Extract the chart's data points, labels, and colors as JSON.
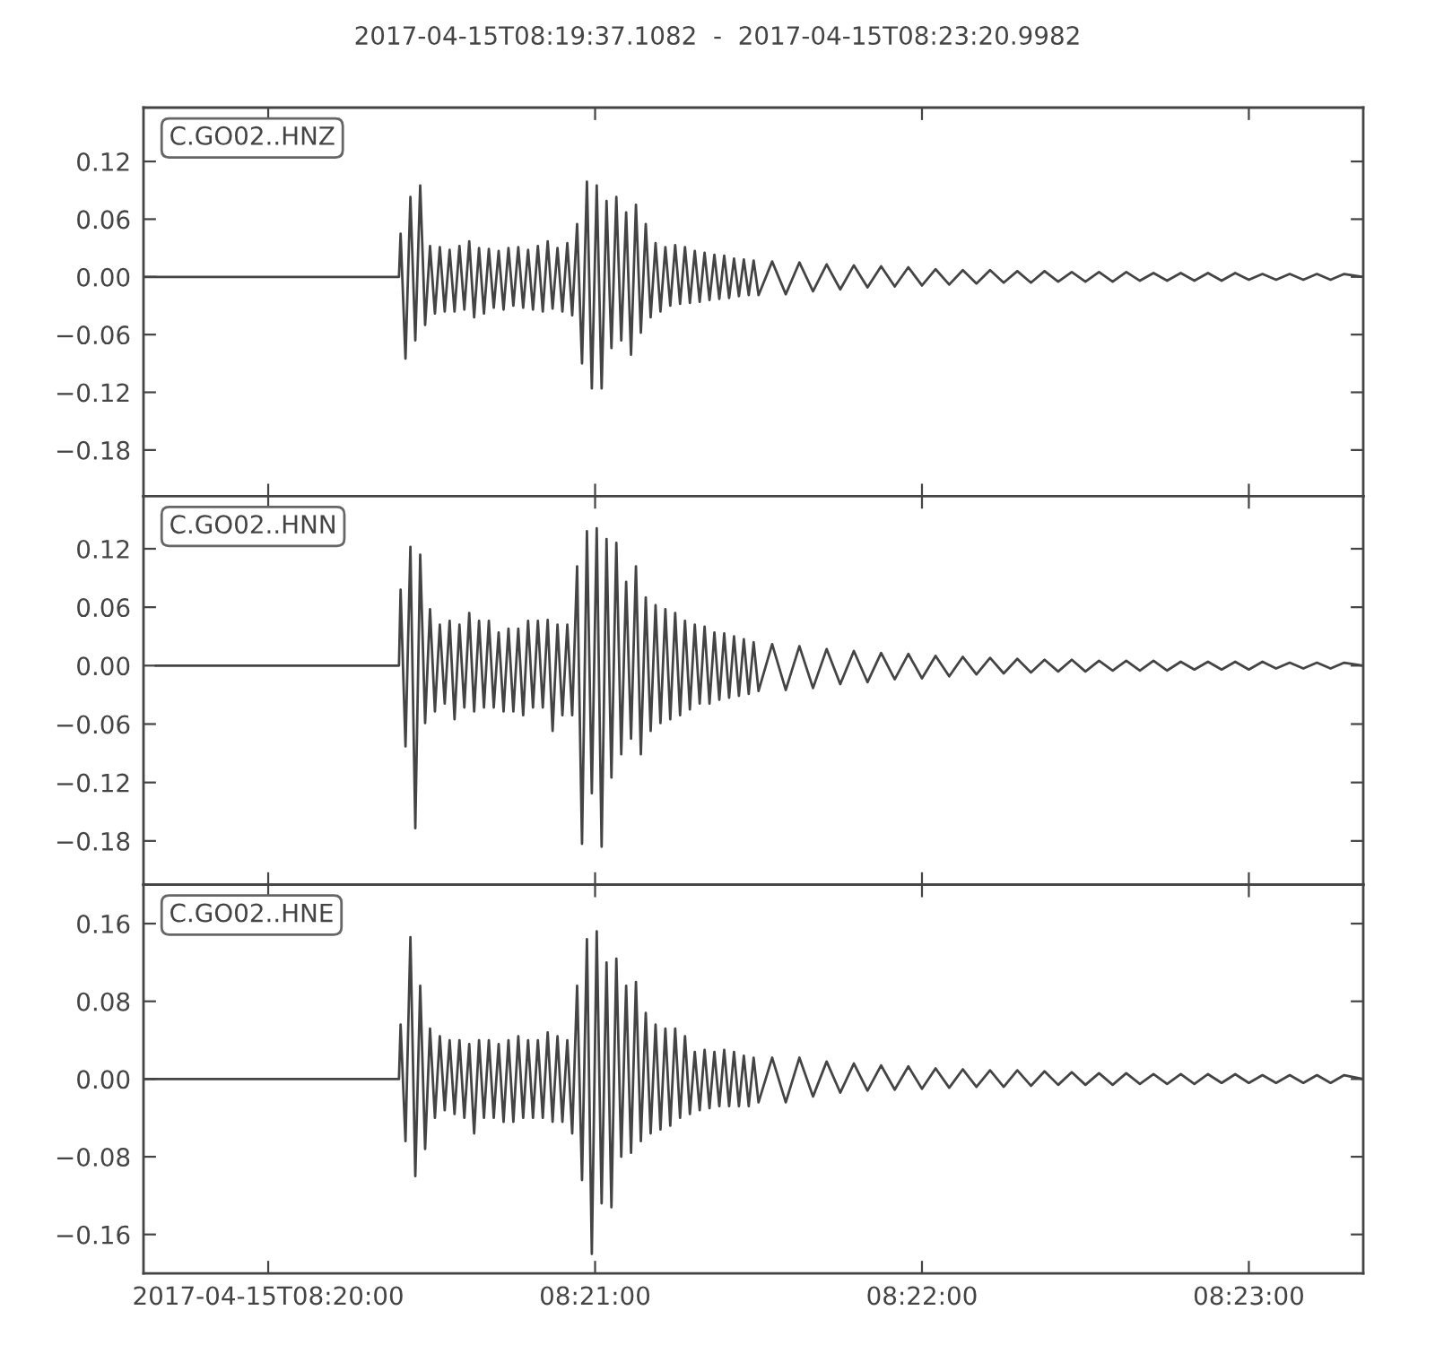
{
  "chart_data": [
    {
      "type": "line",
      "title": "2017-04-15T08:19:37.1082  -  2017-04-15T08:23:20.9982",
      "annotations": [
        "C.GO02..HNZ"
      ],
      "color": "#444444",
      "tick_labels": "y",
      "x": [
        "2017-04-15T08:19:37.1",
        "2017-04-15T08:20:24.0",
        "2017-04-15T08:20:24.3",
        "2017-04-15T08:20:25.2",
        "2017-04-15T08:20:26.1",
        "2017-04-15T08:20:27.0",
        "2017-04-15T08:20:27.9",
        "2017-04-15T08:20:28.8",
        "2017-04-15T08:20:29.7",
        "2017-04-15T08:20:30.6",
        "2017-04-15T08:20:31.5",
        "2017-04-15T08:20:32.4",
        "2017-04-15T08:20:33.3",
        "2017-04-15T08:20:34.2",
        "2017-04-15T08:20:35.1",
        "2017-04-15T08:20:36.0",
        "2017-04-15T08:20:36.9",
        "2017-04-15T08:20:37.8",
        "2017-04-15T08:20:38.7",
        "2017-04-15T08:20:39.6",
        "2017-04-15T08:20:40.5",
        "2017-04-15T08:20:41.4",
        "2017-04-15T08:20:42.3",
        "2017-04-15T08:20:43.2",
        "2017-04-15T08:20:44.1",
        "2017-04-15T08:20:45.0",
        "2017-04-15T08:20:45.9",
        "2017-04-15T08:20:46.8",
        "2017-04-15T08:20:47.7",
        "2017-04-15T08:20:48.6",
        "2017-04-15T08:20:49.5",
        "2017-04-15T08:20:50.4",
        "2017-04-15T08:20:51.3",
        "2017-04-15T08:20:52.2",
        "2017-04-15T08:20:53.1",
        "2017-04-15T08:20:54.0",
        "2017-04-15T08:20:54.9",
        "2017-04-15T08:20:55.8",
        "2017-04-15T08:20:56.7",
        "2017-04-15T08:20:57.6",
        "2017-04-15T08:20:58.5",
        "2017-04-15T08:20:59.4",
        "2017-04-15T08:21:00.3",
        "2017-04-15T08:21:01.2",
        "2017-04-15T08:21:02.1",
        "2017-04-15T08:21:03.0",
        "2017-04-15T08:21:03.9",
        "2017-04-15T08:21:04.8",
        "2017-04-15T08:21:05.7",
        "2017-04-15T08:21:06.6",
        "2017-04-15T08:21:07.5",
        "2017-04-15T08:21:08.4",
        "2017-04-15T08:21:09.3",
        "2017-04-15T08:21:10.2",
        "2017-04-15T08:21:11.1",
        "2017-04-15T08:21:12.0",
        "2017-04-15T08:21:12.9",
        "2017-04-15T08:21:13.8",
        "2017-04-15T08:21:14.7",
        "2017-04-15T08:21:15.6",
        "2017-04-15T08:21:16.5",
        "2017-04-15T08:21:17.4",
        "2017-04-15T08:21:18.3",
        "2017-04-15T08:21:19.2",
        "2017-04-15T08:21:20.1",
        "2017-04-15T08:21:21.0",
        "2017-04-15T08:21:21.9",
        "2017-04-15T08:21:22.8",
        "2017-04-15T08:21:23.7",
        "2017-04-15T08:21:24.6",
        "2017-04-15T08:21:25.5",
        "2017-04-15T08:21:26.4",
        "2017-04-15T08:21:27.3",
        "2017-04-15T08:21:28.2",
        "2017-04-15T08:21:29.1",
        "2017-04-15T08:21:30.0",
        "2017-04-15T08:21:32.5",
        "2017-04-15T08:21:35.0",
        "2017-04-15T08:21:37.5",
        "2017-04-15T08:21:40.0",
        "2017-04-15T08:21:42.5",
        "2017-04-15T08:21:45.0",
        "2017-04-15T08:21:47.5",
        "2017-04-15T08:21:50.0",
        "2017-04-15T08:21:52.5",
        "2017-04-15T08:21:55.0",
        "2017-04-15T08:21:57.5",
        "2017-04-15T08:22:00.0",
        "2017-04-15T08:22:02.5",
        "2017-04-15T08:22:05.0",
        "2017-04-15T08:22:07.5",
        "2017-04-15T08:22:10.0",
        "2017-04-15T08:22:12.5",
        "2017-04-15T08:22:15.0",
        "2017-04-15T08:22:17.5",
        "2017-04-15T08:22:20.0",
        "2017-04-15T08:22:22.5",
        "2017-04-15T08:22:25.0",
        "2017-04-15T08:22:27.5",
        "2017-04-15T08:22:30.0",
        "2017-04-15T08:22:32.5",
        "2017-04-15T08:22:35.0",
        "2017-04-15T08:22:37.5",
        "2017-04-15T08:22:40.0",
        "2017-04-15T08:22:42.5",
        "2017-04-15T08:22:45.0",
        "2017-04-15T08:22:47.5",
        "2017-04-15T08:22:50.0",
        "2017-04-15T08:22:52.5",
        "2017-04-15T08:22:55.0",
        "2017-04-15T08:22:57.5",
        "2017-04-15T08:23:00.0",
        "2017-04-15T08:23:02.5",
        "2017-04-15T08:23:05.0",
        "2017-04-15T08:23:07.5",
        "2017-04-15T08:23:10.0",
        "2017-04-15T08:23:12.5",
        "2017-04-15T08:23:15.0",
        "2017-04-15T08:23:17.5",
        "2017-04-15T08:23:20.9"
      ],
      "values": [
        0,
        0,
        0.045,
        -0.085,
        0.083,
        -0.066,
        0.095,
        -0.05,
        0.032,
        -0.038,
        0.031,
        -0.036,
        0.028,
        -0.036,
        0.032,
        -0.034,
        0.037,
        -0.042,
        0.03,
        -0.038,
        0.029,
        -0.032,
        0.027,
        -0.034,
        0.03,
        -0.03,
        0.031,
        -0.032,
        0.028,
        -0.034,
        0.032,
        -0.036,
        0.037,
        -0.033,
        0.03,
        -0.036,
        0.035,
        -0.04,
        0.055,
        -0.09,
        0.099,
        -0.116,
        0.095,
        -0.116,
        0.079,
        -0.074,
        0.083,
        -0.066,
        0.067,
        -0.081,
        0.075,
        -0.058,
        0.055,
        -0.042,
        0.035,
        -0.036,
        0.031,
        -0.03,
        0.033,
        -0.028,
        0.031,
        -0.027,
        0.027,
        -0.026,
        0.025,
        -0.024,
        0.023,
        -0.023,
        0.022,
        -0.022,
        0.019,
        -0.02,
        0.018,
        -0.019,
        0.017,
        -0.019,
        0.016,
        -0.018,
        0.015,
        -0.015,
        0.013,
        -0.013,
        0.012,
        -0.011,
        0.011,
        -0.01,
        0.01,
        -0.009,
        0.008,
        -0.008,
        0.007,
        -0.007,
        0.007,
        -0.006,
        0.006,
        -0.006,
        0.006,
        -0.005,
        0.005,
        -0.005,
        0.005,
        -0.005,
        0.005,
        -0.004,
        0.004,
        -0.004,
        0.004,
        -0.004,
        0.004,
        -0.004,
        0.004,
        -0.003,
        0.003,
        -0.003,
        0.003,
        -0.003,
        0.003,
        -0.003,
        0.003,
        0
      ],
      "xlim": [
        "2017-04-15T08:19:37.1082",
        "2017-04-15T08:23:20.9982"
      ],
      "xticks": [
        {
          "value": "2017-04-15T08:20:00",
          "label": null
        },
        {
          "value": "2017-04-15T08:21:00",
          "label": null
        },
        {
          "value": "2017-04-15T08:22:00",
          "label": null
        },
        {
          "value": "2017-04-15T08:23:00",
          "label": null
        }
      ],
      "ylim": [
        -0.228,
        0.176
      ],
      "yticks": [
        {
          "value": -0.18,
          "label": "−0.18"
        },
        {
          "value": -0.12,
          "label": "−0.12"
        },
        {
          "value": -0.06,
          "label": "−0.06"
        },
        {
          "value": 0,
          "label": "0.00"
        },
        0.06,
        0.12
      ]
    },
    {
      "type": "line",
      "annotations": [
        "C.GO02..HNN"
      ],
      "color": "#444444",
      "tick_labels": "y",
      "x": [
        "2017-04-15T08:19:39.4",
        "2017-04-15T08:20:24.0",
        "2017-04-15T08:20:24.3",
        "2017-04-15T08:20:25.2",
        "2017-04-15T08:20:26.1",
        "2017-04-15T08:20:27.0",
        "2017-04-15T08:20:27.9",
        "2017-04-15T08:20:28.8",
        "2017-04-15T08:20:29.7",
        "2017-04-15T08:20:30.6",
        "2017-04-15T08:20:31.5",
        "2017-04-15T08:20:32.4",
        "2017-04-15T08:20:33.3",
        "2017-04-15T08:20:34.2",
        "2017-04-15T08:20:35.1",
        "2017-04-15T08:20:36.0",
        "2017-04-15T08:20:36.9",
        "2017-04-15T08:20:37.8",
        "2017-04-15T08:20:38.7",
        "2017-04-15T08:20:39.6",
        "2017-04-15T08:20:40.5",
        "2017-04-15T08:20:41.4",
        "2017-04-15T08:20:42.3",
        "2017-04-15T08:20:43.2",
        "2017-04-15T08:20:44.1",
        "2017-04-15T08:20:45.0",
        "2017-04-15T08:20:45.9",
        "2017-04-15T08:20:46.8",
        "2017-04-15T08:20:47.7",
        "2017-04-15T08:20:48.6",
        "2017-04-15T08:20:49.5",
        "2017-04-15T08:20:50.4",
        "2017-04-15T08:20:51.3",
        "2017-04-15T08:20:52.2",
        "2017-04-15T08:20:53.1",
        "2017-04-15T08:20:54.0",
        "2017-04-15T08:20:54.9",
        "2017-04-15T08:20:55.8",
        "2017-04-15T08:20:56.7",
        "2017-04-15T08:20:57.6",
        "2017-04-15T08:20:58.5",
        "2017-04-15T08:20:59.4",
        "2017-04-15T08:21:00.3",
        "2017-04-15T08:21:01.2",
        "2017-04-15T08:21:02.1",
        "2017-04-15T08:21:03.0",
        "2017-04-15T08:21:03.9",
        "2017-04-15T08:21:04.8",
        "2017-04-15T08:21:05.7",
        "2017-04-15T08:21:06.6",
        "2017-04-15T08:21:07.5",
        "2017-04-15T08:21:08.4",
        "2017-04-15T08:21:09.3",
        "2017-04-15T08:21:10.2",
        "2017-04-15T08:21:11.1",
        "2017-04-15T08:21:12.0",
        "2017-04-15T08:21:12.9",
        "2017-04-15T08:21:13.8",
        "2017-04-15T08:21:14.7",
        "2017-04-15T08:21:15.6",
        "2017-04-15T08:21:16.5",
        "2017-04-15T08:21:17.4",
        "2017-04-15T08:21:18.3",
        "2017-04-15T08:21:19.2",
        "2017-04-15T08:21:20.1",
        "2017-04-15T08:21:21.0",
        "2017-04-15T08:21:21.9",
        "2017-04-15T08:21:22.8",
        "2017-04-15T08:21:23.7",
        "2017-04-15T08:21:24.6",
        "2017-04-15T08:21:25.5",
        "2017-04-15T08:21:26.4",
        "2017-04-15T08:21:27.3",
        "2017-04-15T08:21:28.2",
        "2017-04-15T08:21:29.1",
        "2017-04-15T08:21:30.0",
        "2017-04-15T08:21:32.5",
        "2017-04-15T08:21:35.0",
        "2017-04-15T08:21:37.5",
        "2017-04-15T08:21:40.0",
        "2017-04-15T08:21:42.5",
        "2017-04-15T08:21:45.0",
        "2017-04-15T08:21:47.5",
        "2017-04-15T08:21:50.0",
        "2017-04-15T08:21:52.5",
        "2017-04-15T08:21:55.0",
        "2017-04-15T08:21:57.5",
        "2017-04-15T08:22:00.0",
        "2017-04-15T08:22:02.5",
        "2017-04-15T08:22:05.0",
        "2017-04-15T08:22:07.5",
        "2017-04-15T08:22:10.0",
        "2017-04-15T08:22:12.5",
        "2017-04-15T08:22:15.0",
        "2017-04-15T08:22:17.5",
        "2017-04-15T08:22:20.0",
        "2017-04-15T08:22:22.5",
        "2017-04-15T08:22:25.0",
        "2017-04-15T08:22:27.5",
        "2017-04-15T08:22:30.0",
        "2017-04-15T08:22:32.5",
        "2017-04-15T08:22:35.0",
        "2017-04-15T08:22:37.5",
        "2017-04-15T08:22:40.0",
        "2017-04-15T08:22:42.5",
        "2017-04-15T08:22:45.0",
        "2017-04-15T08:22:47.5",
        "2017-04-15T08:22:50.0",
        "2017-04-15T08:22:52.5",
        "2017-04-15T08:22:55.0",
        "2017-04-15T08:22:57.5",
        "2017-04-15T08:23:00.0",
        "2017-04-15T08:23:02.5",
        "2017-04-15T08:23:05.0",
        "2017-04-15T08:23:07.5",
        "2017-04-15T08:23:10.0",
        "2017-04-15T08:23:12.5",
        "2017-04-15T08:23:15.0",
        "2017-04-15T08:23:17.5",
        "2017-04-15T08:23:20.9"
      ],
      "values": [
        0,
        0,
        0.078,
        -0.083,
        0.122,
        -0.167,
        0.114,
        -0.059,
        0.058,
        -0.047,
        0.042,
        -0.039,
        0.046,
        -0.055,
        0.042,
        -0.043,
        0.054,
        -0.047,
        0.046,
        -0.043,
        0.046,
        -0.043,
        0.034,
        -0.047,
        0.038,
        -0.047,
        0.038,
        -0.051,
        0.046,
        -0.043,
        0.046,
        -0.043,
        0.047,
        -0.067,
        0.042,
        -0.051,
        0.042,
        -0.051,
        0.102,
        -0.183,
        0.138,
        -0.131,
        0.141,
        -0.186,
        0.13,
        -0.115,
        0.126,
        -0.091,
        0.086,
        -0.075,
        0.102,
        -0.091,
        0.07,
        -0.067,
        0.062,
        -0.059,
        0.058,
        -0.055,
        0.054,
        -0.051,
        0.046,
        -0.045,
        0.042,
        -0.039,
        0.04,
        -0.039,
        0.034,
        -0.035,
        0.033,
        -0.033,
        0.03,
        -0.031,
        0.027,
        -0.029,
        0.024,
        -0.026,
        0.022,
        -0.025,
        0.02,
        -0.023,
        0.017,
        -0.019,
        0.015,
        -0.017,
        0.013,
        -0.014,
        0.012,
        -0.013,
        0.01,
        -0.011,
        0.009,
        -0.009,
        0.008,
        -0.008,
        0.007,
        -0.007,
        0.006,
        -0.006,
        0.006,
        -0.006,
        0.005,
        -0.005,
        0.005,
        -0.005,
        0.005,
        -0.005,
        0.004,
        -0.004,
        0.004,
        -0.004,
        0.004,
        -0.004,
        0.004,
        -0.003,
        0.003,
        -0.003,
        0.003,
        -0.003,
        0.003,
        0
      ],
      "xlim": [
        "2017-04-15T08:19:37.1082",
        "2017-04-15T08:23:20.9982"
      ],
      "xticks": [
        {
          "value": "2017-04-15T08:20:00",
          "label": null
        },
        {
          "value": "2017-04-15T08:21:00",
          "label": null
        },
        {
          "value": "2017-04-15T08:22:00",
          "label": null
        },
        {
          "value": "2017-04-15T08:23:00",
          "label": null
        }
      ],
      "ylim": [
        -0.225,
        0.174
      ],
      "yticks": [
        {
          "value": -0.18,
          "label": "−0.18"
        },
        {
          "value": -0.12,
          "label": "−0.12"
        },
        {
          "value": -0.06,
          "label": "−0.06"
        },
        {
          "value": 0,
          "label": "0.00"
        },
        0.06,
        0.12
      ]
    },
    {
      "type": "line",
      "annotations": [
        "C.GO02..HNE"
      ],
      "color": "#444444",
      "x": [
        "2017-04-15T08:19:37.1",
        "2017-04-15T08:20:24.0",
        "2017-04-15T08:20:24.3",
        "2017-04-15T08:20:25.2",
        "2017-04-15T08:20:26.1",
        "2017-04-15T08:20:27.0",
        "2017-04-15T08:20:27.9",
        "2017-04-15T08:20:28.8",
        "2017-04-15T08:20:29.7",
        "2017-04-15T08:20:30.6",
        "2017-04-15T08:20:31.5",
        "2017-04-15T08:20:32.4",
        "2017-04-15T08:20:33.3",
        "2017-04-15T08:20:34.2",
        "2017-04-15T08:20:35.1",
        "2017-04-15T08:20:36.0",
        "2017-04-15T08:20:36.9",
        "2017-04-15T08:20:37.8",
        "2017-04-15T08:20:38.7",
        "2017-04-15T08:20:39.6",
        "2017-04-15T08:20:40.5",
        "2017-04-15T08:20:41.4",
        "2017-04-15T08:20:42.3",
        "2017-04-15T08:20:43.2",
        "2017-04-15T08:20:44.1",
        "2017-04-15T08:20:45.0",
        "2017-04-15T08:20:45.9",
        "2017-04-15T08:20:46.8",
        "2017-04-15T08:20:47.7",
        "2017-04-15T08:20:48.6",
        "2017-04-15T08:20:49.5",
        "2017-04-15T08:20:50.4",
        "2017-04-15T08:20:51.3",
        "2017-04-15T08:20:52.2",
        "2017-04-15T08:20:53.1",
        "2017-04-15T08:20:54.0",
        "2017-04-15T08:20:54.9",
        "2017-04-15T08:20:55.8",
        "2017-04-15T08:20:56.7",
        "2017-04-15T08:20:57.6",
        "2017-04-15T08:20:58.5",
        "2017-04-15T08:20:59.4",
        "2017-04-15T08:21:00.3",
        "2017-04-15T08:21:01.2",
        "2017-04-15T08:21:02.1",
        "2017-04-15T08:21:03.0",
        "2017-04-15T08:21:03.9",
        "2017-04-15T08:21:04.8",
        "2017-04-15T08:21:05.7",
        "2017-04-15T08:21:06.6",
        "2017-04-15T08:21:07.5",
        "2017-04-15T08:21:08.4",
        "2017-04-15T08:21:09.3",
        "2017-04-15T08:21:10.2",
        "2017-04-15T08:21:11.1",
        "2017-04-15T08:21:12.0",
        "2017-04-15T08:21:12.9",
        "2017-04-15T08:21:13.8",
        "2017-04-15T08:21:14.7",
        "2017-04-15T08:21:15.6",
        "2017-04-15T08:21:16.5",
        "2017-04-15T08:21:17.4",
        "2017-04-15T08:21:18.3",
        "2017-04-15T08:21:19.2",
        "2017-04-15T08:21:20.1",
        "2017-04-15T08:21:21.0",
        "2017-04-15T08:21:21.9",
        "2017-04-15T08:21:22.8",
        "2017-04-15T08:21:23.7",
        "2017-04-15T08:21:24.6",
        "2017-04-15T08:21:25.5",
        "2017-04-15T08:21:26.4",
        "2017-04-15T08:21:27.3",
        "2017-04-15T08:21:28.2",
        "2017-04-15T08:21:29.1",
        "2017-04-15T08:21:30.0",
        "2017-04-15T08:21:32.5",
        "2017-04-15T08:21:35.0",
        "2017-04-15T08:21:37.5",
        "2017-04-15T08:21:40.0",
        "2017-04-15T08:21:42.5",
        "2017-04-15T08:21:45.0",
        "2017-04-15T08:21:47.5",
        "2017-04-15T08:21:50.0",
        "2017-04-15T08:21:52.5",
        "2017-04-15T08:21:55.0",
        "2017-04-15T08:21:57.5",
        "2017-04-15T08:22:00.0",
        "2017-04-15T08:22:02.5",
        "2017-04-15T08:22:05.0",
        "2017-04-15T08:22:07.5",
        "2017-04-15T08:22:10.0",
        "2017-04-15T08:22:12.5",
        "2017-04-15T08:22:15.0",
        "2017-04-15T08:22:17.5",
        "2017-04-15T08:22:20.0",
        "2017-04-15T08:22:22.5",
        "2017-04-15T08:22:25.0",
        "2017-04-15T08:22:27.5",
        "2017-04-15T08:22:30.0",
        "2017-04-15T08:22:32.5",
        "2017-04-15T08:22:35.0",
        "2017-04-15T08:22:37.5",
        "2017-04-15T08:22:40.0",
        "2017-04-15T08:22:42.5",
        "2017-04-15T08:22:45.0",
        "2017-04-15T08:22:47.5",
        "2017-04-15T08:22:50.0",
        "2017-04-15T08:22:52.5",
        "2017-04-15T08:22:55.0",
        "2017-04-15T08:22:57.5",
        "2017-04-15T08:23:00.0",
        "2017-04-15T08:23:02.5",
        "2017-04-15T08:23:05.0",
        "2017-04-15T08:23:07.5",
        "2017-04-15T08:23:10.0",
        "2017-04-15T08:23:12.5",
        "2017-04-15T08:23:15.0",
        "2017-04-15T08:23:17.5",
        "2017-04-15T08:23:20.9"
      ],
      "values": [
        0,
        0,
        0.056,
        -0.064,
        0.146,
        -0.1,
        0.096,
        -0.072,
        0.052,
        -0.04,
        0.044,
        -0.032,
        0.04,
        -0.036,
        0.04,
        -0.04,
        0.036,
        -0.056,
        0.04,
        -0.04,
        0.04,
        -0.04,
        0.036,
        -0.044,
        0.04,
        -0.044,
        0.044,
        -0.04,
        0.04,
        -0.04,
        0.04,
        -0.04,
        0.048,
        -0.044,
        0.044,
        -0.044,
        0.04,
        -0.056,
        0.096,
        -0.104,
        0.144,
        -0.18,
        0.152,
        -0.128,
        0.12,
        -0.132,
        0.124,
        -0.08,
        0.096,
        -0.076,
        0.1,
        -0.064,
        0.068,
        -0.056,
        0.056,
        -0.052,
        0.052,
        -0.048,
        0.052,
        -0.04,
        0.044,
        -0.036,
        0.028,
        -0.032,
        0.03,
        -0.03,
        0.028,
        -0.028,
        0.03,
        -0.028,
        0.028,
        -0.028,
        0.024,
        -0.028,
        0.022,
        -0.024,
        0.022,
        -0.024,
        0.022,
        -0.018,
        0.018,
        -0.014,
        0.016,
        -0.012,
        0.014,
        -0.011,
        0.013,
        -0.01,
        0.011,
        -0.009,
        0.01,
        -0.008,
        0.009,
        -0.008,
        0.009,
        -0.007,
        0.008,
        -0.006,
        0.007,
        -0.006,
        0.006,
        -0.006,
        0.006,
        -0.005,
        0.005,
        -0.005,
        0.005,
        -0.005,
        0.005,
        -0.004,
        0.005,
        -0.004,
        0.004,
        -0.004,
        0.004,
        -0.004,
        0.004,
        -0.004,
        0.004,
        0
      ],
      "xlim": [
        "2017-04-15T08:19:37.1082",
        "2017-04-15T08:23:20.9982"
      ],
      "xticks": [
        {
          "value": "2017-04-15T08:20:00",
          "label": "2017-04-15T08:20:00"
        },
        {
          "value": "2017-04-15T08:21:00",
          "label": "08:21:00"
        },
        {
          "value": "2017-04-15T08:22:00",
          "label": "08:22:00"
        },
        {
          "value": "2017-04-15T08:23:00",
          "label": "08:23:00"
        }
      ],
      "ylim": [
        -0.2,
        0.2
      ],
      "yticks": [
        {
          "value": -0.16,
          "label": "−0.16"
        },
        {
          "value": -0.08,
          "label": "−0.08"
        },
        {
          "value": 0,
          "label": "0.00"
        },
        0.08,
        0.16
      ]
    }
  ]
}
